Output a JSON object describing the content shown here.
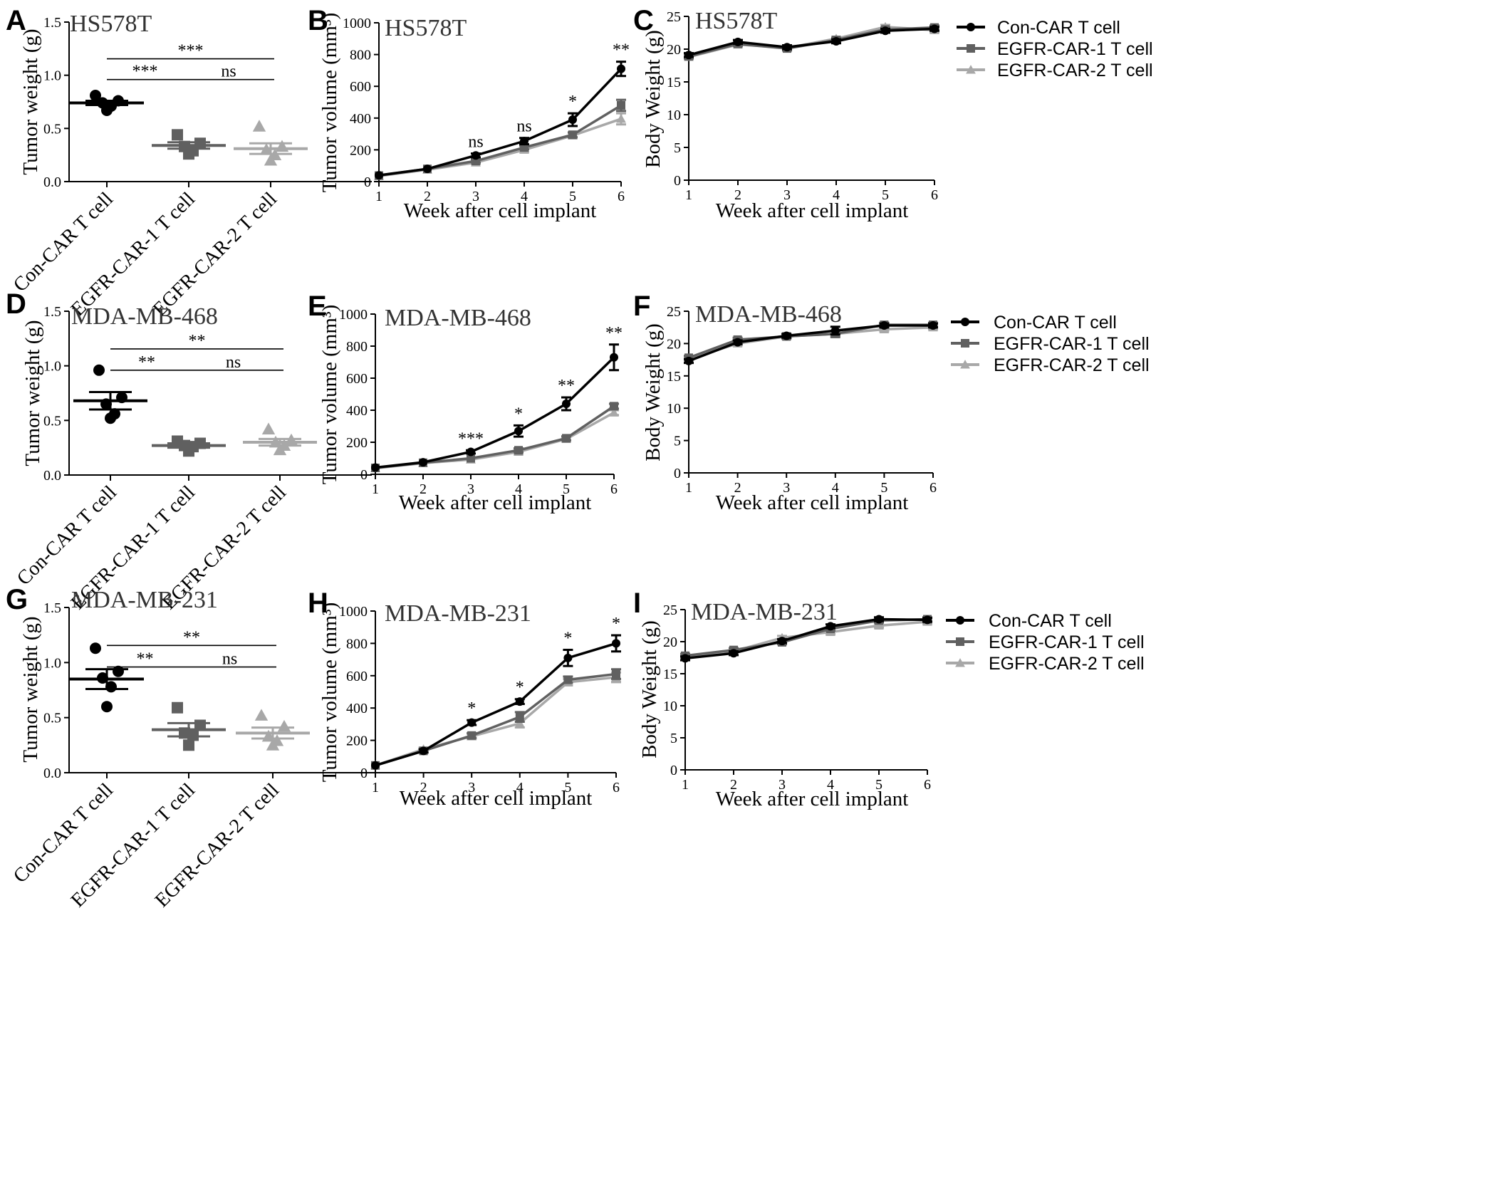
{
  "colors": {
    "con": "#000000",
    "egfr1": "#606060",
    "egfr2": "#a8a8a8"
  },
  "series_names": [
    "Con-CAR T cell",
    "EGFR-CAR-1 T cell",
    "EGFR-CAR-2 T cell"
  ],
  "chart_data": [
    {
      "id": "A",
      "letter": "A",
      "type": "scatter",
      "title": "HS578T",
      "ylabel": "Tumor weight (g)",
      "ylim": [
        0,
        1.5
      ],
      "yticks": [
        "0.0",
        "0.5",
        "1.0",
        "1.5"
      ],
      "categories": [
        "Con-CAR T cell",
        "EGFR-CAR-1 T cell",
        "EGFR-CAR-2 T cell"
      ],
      "points": [
        [
          0.81,
          0.76,
          0.74,
          0.71,
          0.67
        ],
        [
          0.44,
          0.36,
          0.33,
          0.29,
          0.26
        ],
        [
          0.52,
          0.33,
          0.3,
          0.25,
          0.2
        ]
      ],
      "mean": [
        0.74,
        0.34,
        0.31
      ],
      "sem": [
        0.02,
        0.03,
        0.05
      ],
      "significance": [
        {
          "from": 0,
          "to": 1,
          "label": "***"
        },
        {
          "from": 0,
          "to": 2,
          "label": "***"
        },
        {
          "from": 1,
          "to": 2,
          "label": "ns"
        }
      ]
    },
    {
      "id": "B",
      "letter": "B",
      "type": "line",
      "title": "HS578T",
      "ylabel": "Tumor volume (mm³)",
      "xlabel": "Week after cell implant",
      "ylim": [
        0,
        1000
      ],
      "yticks": [
        "0",
        "200",
        "400",
        "600",
        "800",
        "1000"
      ],
      "x": [
        1,
        2,
        3,
        4,
        5,
        6
      ],
      "xticks": [
        "1",
        "2",
        "3",
        "4",
        "5",
        "6"
      ],
      "series": [
        {
          "name": "Con-CAR T cell",
          "values": [
            40,
            80,
            165,
            255,
            390,
            710
          ],
          "err": [
            8,
            8,
            12,
            20,
            40,
            45
          ]
        },
        {
          "name": "EGFR-CAR-1 T cell",
          "values": [
            38,
            80,
            130,
            215,
            295,
            480
          ],
          "err": [
            6,
            6,
            10,
            12,
            15,
            35
          ]
        },
        {
          "name": "EGFR-CAR-2 T cell",
          "values": [
            35,
            75,
            120,
            200,
            290,
            395
          ],
          "err": [
            6,
            6,
            10,
            12,
            15,
            35
          ]
        }
      ],
      "annotations": [
        {
          "x": 3,
          "label": "ns"
        },
        {
          "x": 4,
          "label": "ns"
        },
        {
          "x": 5,
          "label": "*"
        },
        {
          "x": 6,
          "label": "**"
        }
      ]
    },
    {
      "id": "C",
      "letter": "C",
      "type": "line",
      "title": "HS578T",
      "ylabel": "Body Weight (g)",
      "xlabel": "Week after cell implant",
      "ylim": [
        0,
        25
      ],
      "yticks": [
        "0",
        "5",
        "10",
        "15",
        "20",
        "25"
      ],
      "x": [
        1,
        2,
        3,
        4,
        5,
        6
      ],
      "xticks": [
        "1",
        "2",
        "3",
        "4",
        "5",
        "6"
      ],
      "series": [
        {
          "name": "Con-CAR T cell",
          "values": [
            19.1,
            21.1,
            20.3,
            21.2,
            22.8,
            23.1
          ],
          "err": [
            0.3,
            0.3,
            0.3,
            0.3,
            0.3,
            0.3
          ]
        },
        {
          "name": "EGFR-CAR-1 T cell",
          "values": [
            18.9,
            20.8,
            20.1,
            21.4,
            23.0,
            23.3
          ],
          "err": [
            0.3,
            0.3,
            0.3,
            0.3,
            0.3,
            0.3
          ]
        },
        {
          "name": "EGFR-CAR-2 T cell",
          "values": [
            18.8,
            20.7,
            20.2,
            21.6,
            23.4,
            22.9
          ],
          "err": [
            0.3,
            0.3,
            0.3,
            0.3,
            0.3,
            0.3
          ]
        }
      ],
      "legend": true
    },
    {
      "id": "D",
      "letter": "D",
      "type": "scatter",
      "title": "MDA-MB-468",
      "ylabel": "Tumor weight (g)",
      "ylim": [
        0,
        1.5
      ],
      "yticks": [
        "0.0",
        "0.5",
        "1.0",
        "1.5"
      ],
      "categories": [
        "Con-CAR T cell",
        "EGFR-CAR-1 T cell",
        "EGFR-CAR-2 T cell"
      ],
      "points": [
        [
          0.96,
          0.71,
          0.65,
          0.56,
          0.52
        ],
        [
          0.31,
          0.29,
          0.27,
          0.26,
          0.22
        ],
        [
          0.42,
          0.32,
          0.3,
          0.27,
          0.23
        ]
      ],
      "mean": [
        0.68,
        0.27,
        0.3
      ],
      "sem": [
        0.08,
        0.02,
        0.03
      ],
      "significance": [
        {
          "from": 0,
          "to": 1,
          "label": "**"
        },
        {
          "from": 0,
          "to": 2,
          "label": "**"
        },
        {
          "from": 1,
          "to": 2,
          "label": "ns"
        }
      ]
    },
    {
      "id": "E",
      "letter": "E",
      "type": "line",
      "title": "MDA-MB-468",
      "ylabel": "Tumor volume (mm³)",
      "xlabel": "Week after cell implant",
      "ylim": [
        0,
        1000
      ],
      "yticks": [
        "0",
        "200",
        "400",
        "600",
        "800",
        "1000"
      ],
      "x": [
        1,
        2,
        3,
        4,
        5,
        6
      ],
      "xticks": [
        "1",
        "2",
        "3",
        "4",
        "5",
        "6"
      ],
      "series": [
        {
          "name": "Con-CAR T cell",
          "values": [
            42,
            75,
            140,
            270,
            440,
            730
          ],
          "err": [
            6,
            6,
            10,
            35,
            40,
            80
          ]
        },
        {
          "name": "EGFR-CAR-1 T cell",
          "values": [
            40,
            72,
            100,
            150,
            225,
            425
          ],
          "err": [
            6,
            6,
            8,
            12,
            12,
            15
          ]
        },
        {
          "name": "EGFR-CAR-2 T cell",
          "values": [
            38,
            70,
            92,
            140,
            220,
            385
          ],
          "err": [
            6,
            6,
            8,
            12,
            12,
            15
          ]
        }
      ],
      "annotations": [
        {
          "x": 3,
          "label": "***"
        },
        {
          "x": 4,
          "label": "*"
        },
        {
          "x": 5,
          "label": "**"
        },
        {
          "x": 6,
          "label": "**"
        }
      ]
    },
    {
      "id": "F",
      "letter": "F",
      "type": "line",
      "title": "MDA-MB-468",
      "ylabel": "Body Weight (g)",
      "xlabel": "Week after cell implant",
      "ylim": [
        0,
        25
      ],
      "yticks": [
        "0",
        "5",
        "10",
        "15",
        "20",
        "25"
      ],
      "x": [
        1,
        2,
        3,
        4,
        5,
        6
      ],
      "xticks": [
        "1",
        "2",
        "3",
        "4",
        "5",
        "6"
      ],
      "series": [
        {
          "name": "Con-CAR T cell",
          "values": [
            17.3,
            20.2,
            21.2,
            22.0,
            22.8,
            22.8
          ],
          "err": [
            0.3,
            0.3,
            0.3,
            0.6,
            0.3,
            0.3
          ]
        },
        {
          "name": "EGFR-CAR-1 T cell",
          "values": [
            17.8,
            20.6,
            21.1,
            21.5,
            22.9,
            22.9
          ],
          "err": [
            0.3,
            0.3,
            0.3,
            0.5,
            0.3,
            0.3
          ]
        },
        {
          "name": "EGFR-CAR-2 T cell",
          "values": [
            17.6,
            20.0,
            21.1,
            21.5,
            22.2,
            22.5
          ],
          "err": [
            0.3,
            0.3,
            0.3,
            0.4,
            0.3,
            0.3
          ]
        }
      ],
      "legend": true
    },
    {
      "id": "G",
      "letter": "G",
      "type": "scatter",
      "title": "MDA-MB-231",
      "ylabel": "Tumor weight (g)",
      "ylim": [
        0,
        1.5
      ],
      "yticks": [
        "0.0",
        "0.5",
        "1.0",
        "1.5"
      ],
      "categories": [
        "Con-CAR T cell",
        "EGFR-CAR-1 T cell",
        "EGFR-CAR-2 T cell"
      ],
      "points": [
        [
          1.13,
          0.92,
          0.86,
          0.78,
          0.6
        ],
        [
          0.59,
          0.43,
          0.36,
          0.34,
          0.25
        ],
        [
          0.52,
          0.42,
          0.33,
          0.29,
          0.25
        ]
      ],
      "mean": [
        0.85,
        0.39,
        0.36
      ],
      "sem": [
        0.09,
        0.06,
        0.05
      ],
      "significance": [
        {
          "from": 0,
          "to": 1,
          "label": "**"
        },
        {
          "from": 0,
          "to": 2,
          "label": "**"
        },
        {
          "from": 1,
          "to": 2,
          "label": "ns"
        }
      ]
    },
    {
      "id": "H",
      "letter": "H",
      "type": "line",
      "title": "MDA-MB-231",
      "ylabel": "Tumor volume (mm³)",
      "xlabel": "Week after cell implant",
      "ylim": [
        0,
        1000
      ],
      "yticks": [
        "0",
        "200",
        "400",
        "600",
        "800",
        "1000"
      ],
      "x": [
        1,
        2,
        3,
        4,
        5,
        6
      ],
      "xticks": [
        "1",
        "2",
        "3",
        "4",
        "5",
        "6"
      ],
      "series": [
        {
          "name": "Con-CAR T cell",
          "values": [
            45,
            135,
            310,
            440,
            710,
            800
          ],
          "err": [
            8,
            10,
            15,
            15,
            50,
            50
          ]
        },
        {
          "name": "EGFR-CAR-1 T cell",
          "values": [
            45,
            135,
            230,
            345,
            575,
            610
          ],
          "err": [
            8,
            10,
            15,
            30,
            20,
            30
          ]
        },
        {
          "name": "EGFR-CAR-2 T cell",
          "values": [
            45,
            145,
            225,
            305,
            560,
            590
          ],
          "err": [
            8,
            10,
            15,
            25,
            20,
            30
          ]
        }
      ],
      "annotations": [
        {
          "x": 3,
          "label": "*"
        },
        {
          "x": 4,
          "label": "*"
        },
        {
          "x": 5,
          "label": "*"
        },
        {
          "x": 6,
          "label": "*"
        }
      ]
    },
    {
      "id": "I",
      "letter": "I",
      "type": "line",
      "title": "MDA-MB-231",
      "ylabel": "Body Weight (g)",
      "xlabel": "Week after cell implant",
      "ylim": [
        0,
        25
      ],
      "yticks": [
        "0",
        "5",
        "10",
        "15",
        "20",
        "25"
      ],
      "x": [
        1,
        2,
        3,
        4,
        5,
        6
      ],
      "xticks": [
        "1",
        "2",
        "3",
        "4",
        "5",
        "6"
      ],
      "series": [
        {
          "name": "Con-CAR T cell",
          "values": [
            17.4,
            18.2,
            20.1,
            22.4,
            23.5,
            23.4
          ],
          "err": [
            0.3,
            0.3,
            0.3,
            0.3,
            0.3,
            0.3
          ]
        },
        {
          "name": "EGFR-CAR-1 T cell",
          "values": [
            17.8,
            18.7,
            19.9,
            22.0,
            23.3,
            23.5
          ],
          "err": [
            0.3,
            0.3,
            0.3,
            0.3,
            0.3,
            0.3
          ]
        },
        {
          "name": "EGFR-CAR-2 T cell",
          "values": [
            17.6,
            18.5,
            20.6,
            21.5,
            22.5,
            23.1
          ],
          "err": [
            0.3,
            0.3,
            0.3,
            0.3,
            0.3,
            0.3
          ]
        }
      ],
      "legend": true
    }
  ]
}
